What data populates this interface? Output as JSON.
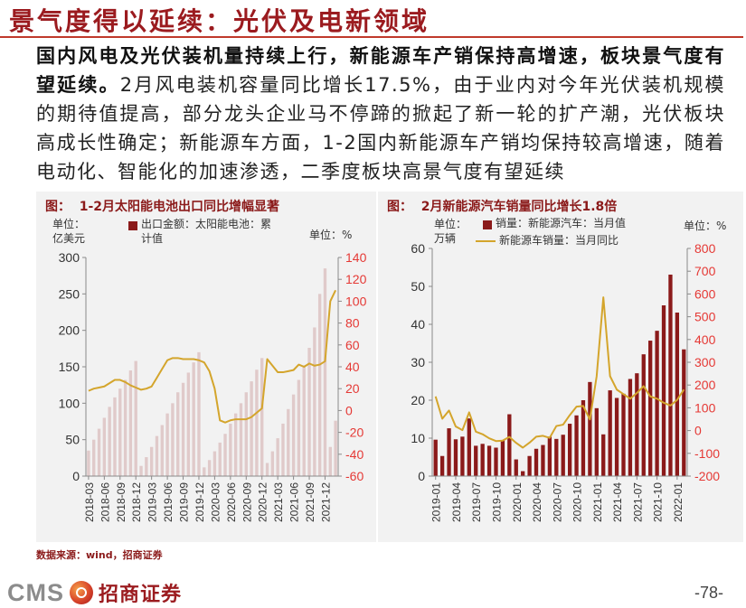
{
  "title": "景气度得以延续：光伏及电新领域",
  "intro": {
    "lead": "国内风电及光伏装机量持续上行，新能源车产销保持高增速，板块景气度有望延续。",
    "body": "2月风电装机容量同比增长17.5%，由于业内对今年光伏装机规模的期待值提高，部分龙头企业马不停蹄的掀起了新一轮的扩产潮，光伏板块高成长性确定；新能源车方面，1-2国内新能源车产销均保持较高增速，随着电动化、智能化的加速渗透，二季度板块高景气度有望延续"
  },
  "source": "数据来源：wind，招商证券",
  "footer": {
    "logo_text": "CMS",
    "brand_text": "招商证券",
    "page_number": "-78-"
  },
  "colors": {
    "accent": "#9B1B1F",
    "rule": "#C0392B",
    "panel_bg": "#F2F2F2",
    "bar_light": "#E0CACA",
    "bar_dark": "#8B1A1A",
    "line": "#D4A52C",
    "right_axis": "#E53935"
  },
  "chart_data": [
    {
      "type": "bar+line",
      "title": "图：  1-2月太阳能电池出口同比增幅显著",
      "left_unit": "单位：亿美元",
      "right_unit": "单位：%",
      "y_left": {
        "min": 0,
        "max": 300,
        "step": 50
      },
      "y_right": {
        "min": -60,
        "max": 140,
        "step": 20
      },
      "tick_step": 3,
      "tick_labels": [
        "2018-03",
        "2018-06",
        "2018-09",
        "2018-12",
        "2019-03",
        "2019-06",
        "2019-09",
        "2019-12",
        "2020-03",
        "2020-06",
        "2020-09",
        "2020-12",
        "2021-03",
        "2021-06",
        "2021-09",
        "2021-12"
      ],
      "series": [
        {
          "name": "出口金额：太阳能电池：累计值",
          "kind": "bar",
          "axis": "left",
          "color": "#E0CACA",
          "values": [
            35,
            50,
            65,
            80,
            95,
            108,
            120,
            132,
            145,
            158,
            14,
            26,
            40,
            55,
            70,
            86,
            100,
            115,
            128,
            142,
            156,
            170,
            12,
            22,
            34,
            46,
            58,
            72,
            86,
            100,
            115,
            130,
            146,
            162,
            18,
            34,
            52,
            72,
            92,
            112,
            132,
            152,
            176,
            204,
            250,
            285,
            40,
            76
          ]
        },
        {
          "kind": "line",
          "axis": "right",
          "color": "#D4A52C",
          "values": [
            18,
            20,
            21,
            22,
            25,
            28,
            28,
            26,
            23,
            21,
            19,
            20,
            22,
            30,
            38,
            46,
            48,
            48,
            47,
            47,
            47,
            46,
            44,
            36,
            20,
            -9,
            -11,
            -9,
            -8,
            -8,
            -8,
            -6,
            -2,
            2,
            47,
            41,
            35,
            35,
            36,
            37,
            42,
            40,
            43,
            41,
            42,
            45,
            100,
            110
          ]
        }
      ]
    },
    {
      "type": "bar+line",
      "title": "图：  2月新能源汽车销量同比增长1.8倍",
      "left_unit": "单位：万辆",
      "right_unit": "单位：%",
      "y_left": {
        "min": 0,
        "max": 60,
        "step": 10
      },
      "y_right": {
        "min": -200,
        "max": 800,
        "step": 100
      },
      "tick_step": 3,
      "tick_labels": [
        "2019-01",
        "2019-04",
        "2019-07",
        "2019-10",
        "2020-01",
        "2020-04",
        "2020-07",
        "2020-10",
        "2021-01",
        "2021-04",
        "2021-07",
        "2021-10",
        "2022-01"
      ],
      "series": [
        {
          "name": "销量：新能源汽车：当月值",
          "kind": "bar",
          "axis": "left",
          "color": "#8B1A1A",
          "values": [
            9.6,
            5.3,
            12.6,
            9.7,
            10.4,
            15.2,
            8.0,
            8.5,
            8.0,
            7.5,
            9.5,
            16.3,
            4.4,
            1.3,
            5.3,
            7.2,
            8.2,
            10.4,
            9.8,
            10.9,
            13.8,
            16.0,
            20.0,
            24.8,
            17.9,
            11.0,
            22.6,
            20.6,
            21.7,
            25.6,
            27.1,
            32.1,
            35.7,
            38.3,
            45.0,
            53.1,
            43.1,
            33.4
          ]
        },
        {
          "name": "新能源车销量：当月同比",
          "kind": "line",
          "axis": "right",
          "color": "#D4A52C",
          "values": [
            150,
            52,
            88,
            18,
            2,
            80,
            -5,
            -16,
            -34,
            -46,
            -44,
            -28,
            -54,
            -75,
            -53,
            -27,
            -23,
            -32,
            20,
            26,
            68,
            105,
            108,
            49,
            238,
            585,
            239,
            180,
            160,
            140,
            165,
            195,
            150,
            140,
            122,
            110,
            135,
            180
          ]
        }
      ]
    }
  ]
}
